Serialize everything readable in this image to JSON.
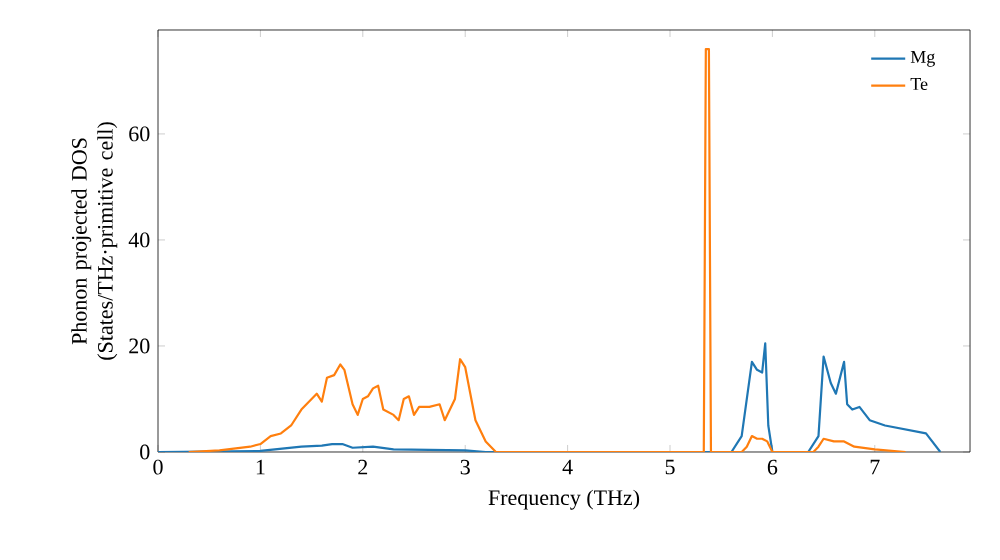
{
  "chart_data": {
    "type": "line",
    "xlabel": "Frequency (THz)",
    "ylabel": "Phonon projected DOS (States/THz·primitive cell)",
    "xlim": [
      0,
      7.93
    ],
    "ylim": [
      0,
      79.6
    ],
    "xticks": [
      0,
      1,
      2,
      3,
      4,
      5,
      6,
      7
    ],
    "yticks": [
      0,
      20,
      40,
      60
    ],
    "legend": "top right",
    "series": [
      {
        "name": "Mg",
        "color": "#1f77b4",
        "x": [
          0,
          1.0,
          1.4,
          1.6,
          1.7,
          1.8,
          1.9,
          2.1,
          2.3,
          3.0,
          3.2,
          5.6,
          5.7,
          5.8,
          5.85,
          5.9,
          5.93,
          5.96,
          6.0,
          6.35,
          6.45,
          6.5,
          6.57,
          6.62,
          6.7,
          6.73,
          6.78,
          6.85,
          6.95,
          7.1,
          7.5,
          7.64
        ],
        "values": [
          0,
          0.2,
          1,
          1.2,
          1.5,
          1.5,
          0.8,
          1,
          0.5,
          0.3,
          0,
          0,
          3,
          17,
          15.5,
          15,
          20.5,
          5,
          0,
          0,
          3,
          18,
          13,
          11,
          17,
          9,
          8,
          8.5,
          6,
          5,
          3.5,
          0
        ]
      },
      {
        "name": "Te",
        "color": "#ff7f0e",
        "x": [
          0.3,
          0.6,
          0.9,
          1.0,
          1.1,
          1.2,
          1.3,
          1.4,
          1.5,
          1.55,
          1.6,
          1.65,
          1.72,
          1.78,
          1.82,
          1.9,
          1.95,
          2.0,
          2.05,
          2.1,
          2.15,
          2.2,
          2.3,
          2.35,
          2.4,
          2.45,
          2.5,
          2.55,
          2.65,
          2.75,
          2.8,
          2.9,
          2.95,
          3.0,
          3.05,
          3.1,
          3.2,
          3.3,
          5.33,
          5.35,
          5.38,
          5.4,
          5.7,
          5.75,
          5.8,
          5.85,
          5.9,
          5.95,
          6.0,
          6.4,
          6.45,
          6.5,
          6.6,
          6.7,
          6.8,
          7.0,
          7.3
        ],
        "values": [
          0,
          0.3,
          1,
          1.5,
          3,
          3.5,
          5,
          8,
          10,
          11,
          9.5,
          14,
          14.5,
          16.5,
          15.5,
          9,
          7,
          10,
          10.5,
          12,
          12.5,
          8,
          7,
          6,
          10,
          10.5,
          7,
          8.5,
          8.5,
          9,
          6,
          10,
          17.5,
          16,
          11,
          6,
          2,
          0,
          0,
          76,
          76,
          0,
          0,
          1,
          3,
          2.5,
          2.5,
          2,
          0,
          0,
          1,
          2.5,
          2,
          2,
          1,
          0.5,
          0
        ]
      }
    ]
  }
}
